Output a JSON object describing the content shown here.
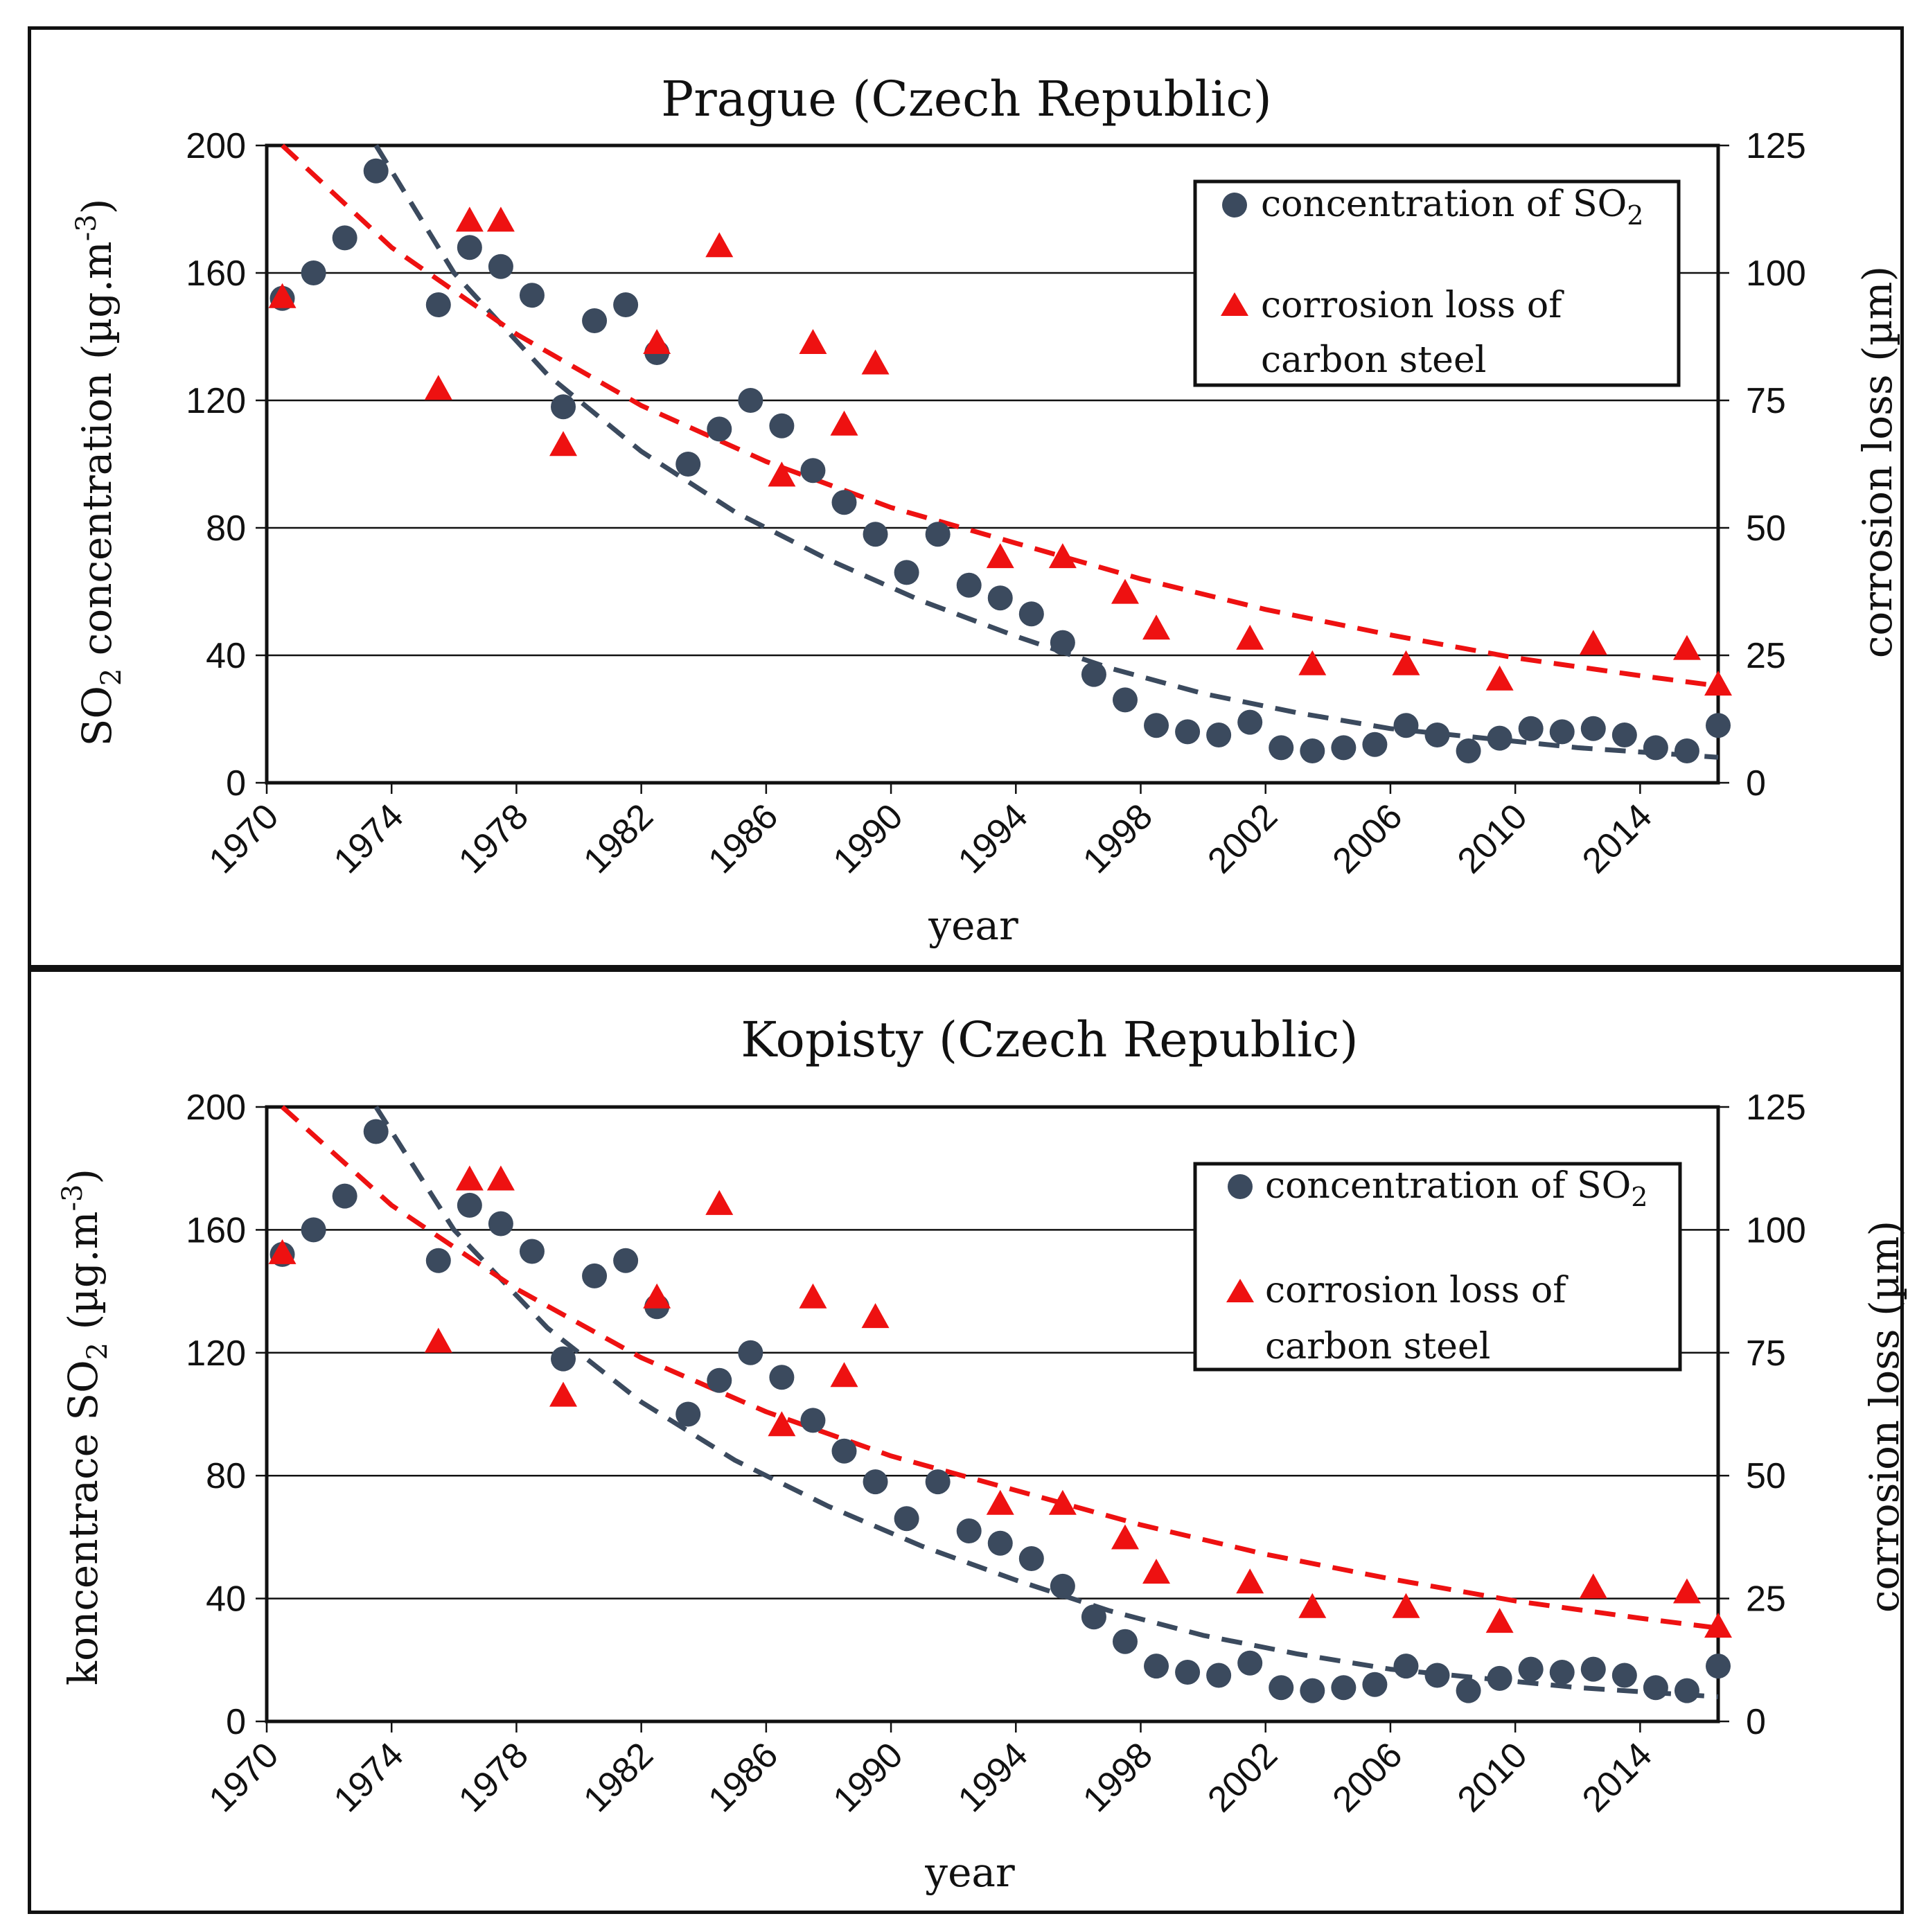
{
  "chart_data": [
    {
      "type": "scatter",
      "title": "Prague (Czech Republic)",
      "xlabel": "year",
      "ylabel": "SO",
      "ylabel_sub": "2",
      "ylabel_rest": " concentration (µg.m",
      "ylabel_sup": "-3",
      "ylabel_end": ")",
      "y2label": "corrosion  loss (µm)",
      "xlim": [
        1970,
        2016.5
      ],
      "ylim": [
        0,
        200
      ],
      "y2lim": [
        0,
        125
      ],
      "x_ticks": [
        1970,
        1974,
        1978,
        1982,
        1986,
        1990,
        1994,
        1998,
        2002,
        2006,
        2010,
        2014
      ],
      "y_ticks": [
        0,
        40,
        80,
        120,
        160,
        200
      ],
      "y2_ticks": [
        0,
        25,
        50,
        75,
        100,
        125
      ],
      "legend": {
        "so2_label": "concentration of SO",
        "so2_sub": "2",
        "corrosion_line1": "corrosion loss of",
        "corrosion_line2": "carbon steel",
        "position": "top-right"
      },
      "series": [
        {
          "name": "concentration of SO2",
          "axis": "left",
          "marker": "circle",
          "color": "#3b4a5e",
          "x": [
            1970.5,
            1971.5,
            1972.5,
            1973.5,
            1975.5,
            1976.5,
            1977.5,
            1978.5,
            1979.5,
            1980.5,
            1981.5,
            1982.5,
            1983.5,
            1984.5,
            1985.5,
            1986.5,
            1987.5,
            1988.5,
            1989.5,
            1990.5,
            1991.5,
            1992.5,
            1993.5,
            1994.5,
            1995.5,
            1996.5,
            1997.5,
            1998.5,
            1999.5,
            2000.5,
            2001.5,
            2002.5,
            2003.5,
            2004.5,
            2005.5,
            2006.5,
            2007.5,
            2008.5,
            2009.5,
            2010.5,
            2011.5,
            2012.5,
            2013.5,
            2014.5,
            2015.5,
            2016.5
          ],
          "y": [
            152,
            160,
            171,
            192,
            150,
            168,
            162,
            153,
            118,
            145,
            150,
            135,
            100,
            111,
            120,
            112,
            98,
            88,
            78,
            66,
            78,
            62,
            58,
            53,
            44,
            34,
            26,
            18,
            16,
            15,
            19,
            11,
            10,
            11,
            12,
            18,
            15,
            10,
            14,
            17,
            16,
            17,
            15,
            11,
            10,
            18
          ]
        },
        {
          "name": "corrosion loss of carbon steel",
          "axis": "right",
          "marker": "triangle",
          "color": "#ee1111",
          "x": [
            1970.5,
            1976.5,
            1977.5,
            1975.5,
            1979.5,
            1982.5,
            1984.5,
            1986.5,
            1987.5,
            1988.5,
            1989.5,
            1993.5,
            1995.5,
            1997.5,
            1998.5,
            2001.5,
            2003.5,
            2006.5,
            2009.5,
            2012.5,
            2015.5,
            2016.5
          ],
          "y": [
            95,
            110,
            110,
            77,
            66,
            86,
            105,
            60,
            86,
            70,
            82,
            44,
            44,
            37,
            30,
            28,
            23,
            23,
            20,
            27,
            26,
            19
          ]
        },
        {
          "name": "SO2 trend",
          "axis": "left",
          "style": "dashed",
          "color": "#3b4a5e",
          "x": [
            1973.5,
            1976,
            1979,
            1982,
            1985,
            1988,
            1991,
            1994,
            1997,
            2000,
            2003,
            2006,
            2009,
            2012,
            2015,
            2016.5
          ],
          "y": [
            200,
            160,
            128,
            104,
            85,
            70,
            57,
            46,
            36,
            28,
            22,
            17,
            14,
            11,
            9,
            8
          ]
        },
        {
          "name": "corrosion trend",
          "axis": "right",
          "style": "dashed",
          "color": "#ee1111",
          "x": [
            1970.5,
            1974,
            1978,
            1982,
            1986,
            1990,
            1994,
            1998,
            2002,
            2006,
            2010,
            2014,
            2016.5
          ],
          "y": [
            125,
            105,
            88,
            74,
            63,
            54,
            47,
            40,
            34,
            29,
            24.5,
            21,
            19
          ]
        }
      ]
    },
    {
      "type": "scatter",
      "title": "Kopisty (Czech Republic)",
      "xlabel": "year",
      "ylabel": "koncentrace SO",
      "ylabel_sub": "2",
      "ylabel_rest": " (µg.m",
      "ylabel_sup": "-3",
      "ylabel_end": ")",
      "y2label": "corrosion loss (µm)",
      "xlim": [
        1970,
        2016.5
      ],
      "ylim": [
        0,
        200
      ],
      "y2lim": [
        0,
        125
      ],
      "x_ticks": [
        1970,
        1974,
        1978,
        1982,
        1986,
        1990,
        1994,
        1998,
        2002,
        2006,
        2010,
        2014
      ],
      "y_ticks": [
        0,
        40,
        80,
        120,
        160,
        200
      ],
      "y2_ticks": [
        0,
        25,
        50,
        75,
        100,
        125
      ],
      "legend": {
        "so2_label": "concentration of SO",
        "so2_sub": "2",
        "corrosion_line1": "corrosion loss of",
        "corrosion_line2": "carbon steel",
        "position": "top-right"
      },
      "series": [
        {
          "name": "concentration of SO2",
          "axis": "left",
          "marker": "circle",
          "color": "#3b4a5e",
          "x": [
            1970.5,
            1971.5,
            1972.5,
            1973.5,
            1975.5,
            1976.5,
            1977.5,
            1978.5,
            1979.5,
            1980.5,
            1981.5,
            1982.5,
            1983.5,
            1984.5,
            1985.5,
            1986.5,
            1987.5,
            1988.5,
            1989.5,
            1990.5,
            1991.5,
            1992.5,
            1993.5,
            1994.5,
            1995.5,
            1996.5,
            1997.5,
            1998.5,
            1999.5,
            2000.5,
            2001.5,
            2002.5,
            2003.5,
            2004.5,
            2005.5,
            2006.5,
            2007.5,
            2008.5,
            2009.5,
            2010.5,
            2011.5,
            2012.5,
            2013.5,
            2014.5,
            2015.5,
            2016.5
          ],
          "y": [
            152,
            160,
            171,
            192,
            150,
            168,
            162,
            153,
            118,
            145,
            150,
            135,
            100,
            111,
            120,
            112,
            98,
            88,
            78,
            66,
            78,
            62,
            58,
            53,
            44,
            34,
            26,
            18,
            16,
            15,
            19,
            11,
            10,
            11,
            12,
            18,
            15,
            10,
            14,
            17,
            16,
            17,
            15,
            11,
            10,
            18
          ]
        },
        {
          "name": "corrosion loss of carbon steel",
          "axis": "right",
          "marker": "triangle",
          "color": "#ee1111",
          "x": [
            1970.5,
            1976.5,
            1977.5,
            1975.5,
            1979.5,
            1982.5,
            1984.5,
            1986.5,
            1987.5,
            1988.5,
            1989.5,
            1993.5,
            1995.5,
            1997.5,
            1998.5,
            2001.5,
            2003.5,
            2006.5,
            2009.5,
            2012.5,
            2015.5,
            2016.5
          ],
          "y": [
            95,
            110,
            110,
            77,
            66,
            86,
            105,
            60,
            86,
            70,
            82,
            44,
            44,
            37,
            30,
            28,
            23,
            23,
            20,
            27,
            26,
            19
          ]
        },
        {
          "name": "SO2 trend",
          "axis": "left",
          "style": "dashed",
          "color": "#3b4a5e",
          "x": [
            1973.5,
            1976,
            1979,
            1982,
            1985,
            1988,
            1991,
            1994,
            1997,
            2000,
            2003,
            2006,
            2009,
            2012,
            2015,
            2016.5
          ],
          "y": [
            200,
            160,
            128,
            104,
            85,
            70,
            57,
            46,
            36,
            28,
            22,
            17,
            14,
            11,
            9,
            8
          ]
        },
        {
          "name": "corrosion trend",
          "axis": "right",
          "style": "dashed",
          "color": "#ee1111",
          "x": [
            1970.5,
            1974,
            1978,
            1982,
            1986,
            1990,
            1994,
            1998,
            2002,
            2006,
            2010,
            2014,
            2016.5
          ],
          "y": [
            125,
            105,
            88,
            74,
            63,
            54,
            47,
            40,
            34,
            29,
            24.5,
            21,
            19
          ]
        }
      ]
    }
  ]
}
